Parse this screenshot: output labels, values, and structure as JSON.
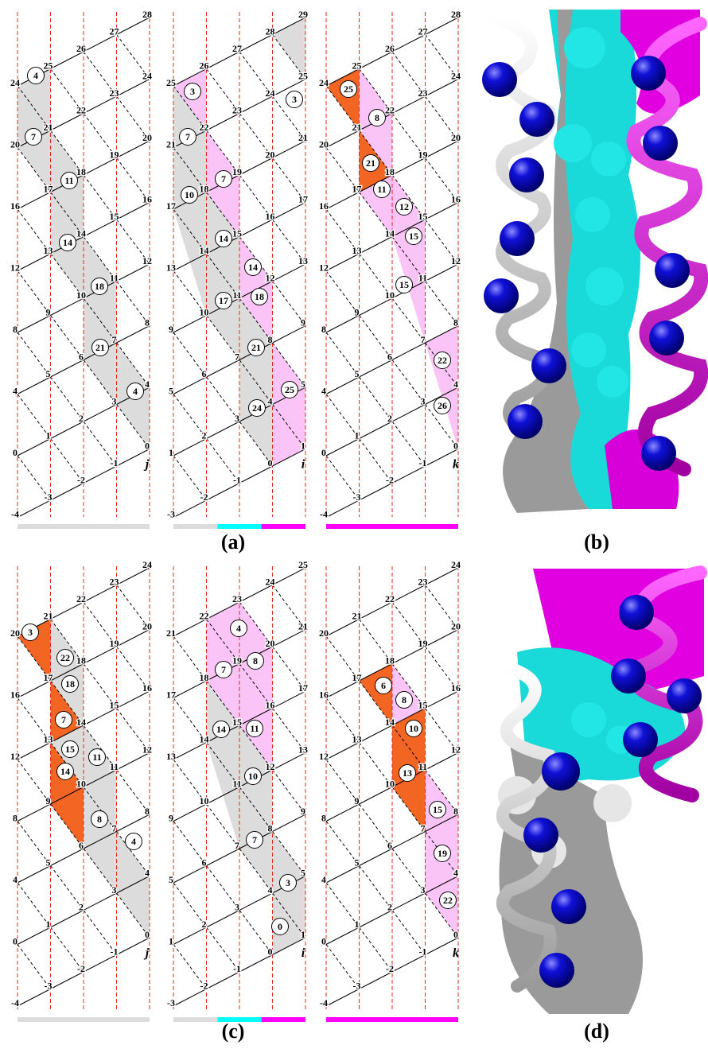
{
  "panels": [
    {
      "label": "(a)",
      "lattices": [
        {
          "axis": "j",
          "columns": [
            [
              24,
              20,
              16,
              12,
              8,
              4,
              0,
              -4
            ],
            [
              25,
              21,
              17,
              13,
              9,
              5,
              1,
              -3
            ],
            [
              26,
              22,
              18,
              14,
              10,
              6,
              2,
              -2
            ],
            [
              27,
              23,
              19,
              15,
              11,
              7,
              3,
              -1
            ],
            [
              28,
              24,
              20,
              16,
              12,
              8,
              4,
              0
            ]
          ],
          "residues": [
            4,
            7,
            11,
            14,
            18,
            21,
            4
          ]
        },
        {
          "axis": "i",
          "columns": [
            [
              25,
              21,
              17,
              13,
              9,
              5,
              1,
              -3
            ],
            [
              26,
              22,
              18,
              14,
              10,
              6,
              2,
              -2
            ],
            [
              27,
              23,
              19,
              15,
              11,
              7,
              3,
              -1
            ],
            [
              28,
              24,
              20,
              16,
              12,
              8,
              4,
              0
            ],
            [
              29,
              25,
              21,
              17,
              13,
              9,
              5,
              1
            ]
          ],
          "residues": [
            3,
            3,
            7,
            10,
            7,
            14,
            17,
            14,
            18,
            21,
            24,
            25
          ]
        },
        {
          "axis": "k",
          "columns": [
            [
              24,
              20,
              16,
              12,
              8,
              4,
              0,
              -4
            ],
            [
              25,
              21,
              17,
              13,
              9,
              5,
              1,
              -3
            ],
            [
              26,
              22,
              18,
              14,
              10,
              6,
              2,
              -2
            ],
            [
              27,
              23,
              19,
              15,
              11,
              7,
              3,
              -1
            ],
            [
              28,
              24,
              20,
              16,
              12,
              8,
              4,
              0
            ]
          ],
          "residues": [
            25,
            8,
            21,
            11,
            12,
            15,
            15,
            22,
            26
          ]
        }
      ]
    },
    {
      "label": "(b)"
    },
    {
      "label": "(c)",
      "lattices": [
        {
          "axis": "j",
          "columns": [
            [
              20,
              16,
              12,
              8,
              4,
              0,
              -4
            ],
            [
              21,
              17,
              13,
              9,
              5,
              1,
              -3
            ],
            [
              22,
              18,
              14,
              10,
              6,
              2,
              -2
            ],
            [
              23,
              19,
              15,
              11,
              7,
              3,
              -1
            ],
            [
              24,
              20,
              16,
              12,
              8,
              4,
              0
            ]
          ],
          "residues": [
            3,
            22,
            18,
            7,
            15,
            14,
            11,
            8,
            4
          ]
        },
        {
          "axis": "i",
          "columns": [
            [
              21,
              17,
              13,
              9,
              5,
              1,
              -3
            ],
            [
              22,
              18,
              14,
              10,
              6,
              2,
              -2
            ],
            [
              23,
              19,
              15,
              11,
              7,
              3,
              -1
            ],
            [
              24,
              20,
              16,
              12,
              8,
              4,
              0
            ],
            [
              25,
              21,
              17,
              13,
              9,
              5,
              1
            ]
          ],
          "residues": [
            4,
            7,
            8,
            14,
            11,
            10,
            7,
            3,
            0
          ]
        },
        {
          "axis": "k",
          "columns": [
            [
              20,
              16,
              12,
              8,
              4,
              0,
              -4
            ],
            [
              21,
              17,
              13,
              9,
              5,
              1,
              -3
            ],
            [
              22,
              18,
              14,
              10,
              6,
              2,
              -2
            ],
            [
              23,
              19,
              15,
              11,
              7,
              3,
              -1
            ],
            [
              24,
              20,
              16,
              12,
              8,
              4,
              0
            ]
          ],
          "residues": [
            6,
            8,
            10,
            13,
            15,
            19,
            22
          ]
        }
      ]
    },
    {
      "label": "(d)"
    }
  ]
}
